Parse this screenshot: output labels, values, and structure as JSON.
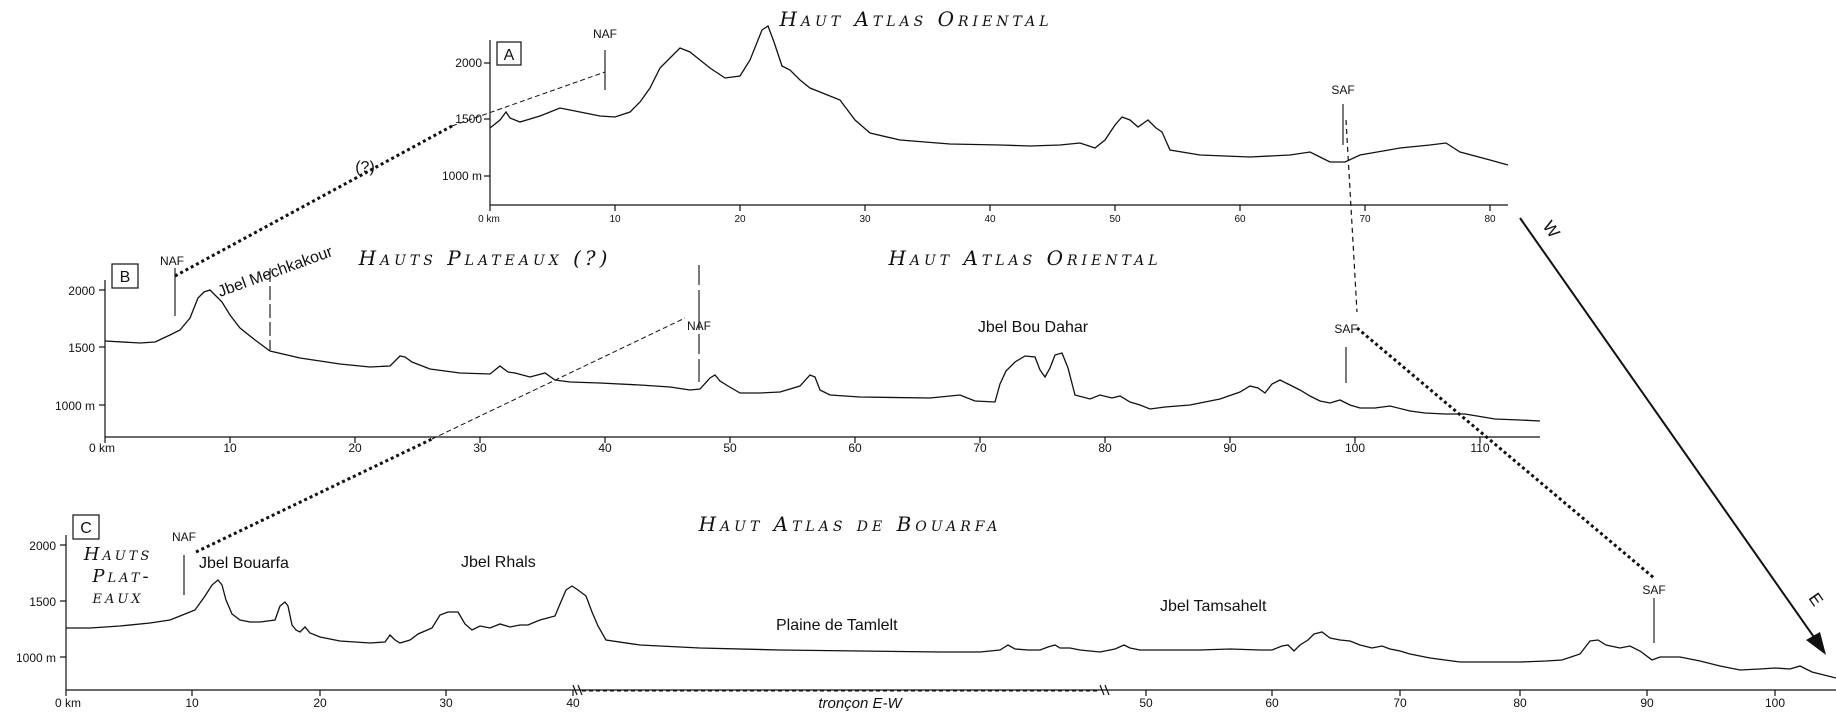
{
  "profileA": {
    "letter": "A",
    "title": "Haut Atlas Oriental",
    "x_ticks": [
      "0 km",
      "10",
      "20",
      "30",
      "40",
      "50",
      "60",
      "70",
      "80"
    ],
    "y_ticks": [
      "2000",
      "1500",
      "1000 m"
    ],
    "faults": {
      "naf": "NAF",
      "saf": "SAF"
    }
  },
  "profileB": {
    "letter": "B",
    "title_left": "Hauts Plateaux (?)",
    "title_right": "Haut Atlas Oriental",
    "x_ticks": [
      "0 km",
      "10",
      "20",
      "30",
      "40",
      "50",
      "60",
      "70",
      "80",
      "90",
      "100",
      "110"
    ],
    "y_ticks": [
      "2000",
      "1500",
      "1000 m"
    ],
    "faults": {
      "naf_left": "NAF",
      "naf_mid": "NAF",
      "saf": "SAF"
    },
    "labels": {
      "mechkakour": "Jbel Mechkakour",
      "bou_dahar": "Jbel Bou Dahar"
    }
  },
  "profileC": {
    "letter": "C",
    "title": "Haut Atlas de Bouarfa",
    "hauts_plateaux": [
      "Hauts",
      "Plat-",
      "eaux"
    ],
    "x_ticks": [
      "0 km",
      "10",
      "20",
      "30",
      "40",
      "50",
      "60",
      "70",
      "80",
      "90",
      "100"
    ],
    "y_ticks": [
      "2000",
      "1500",
      "1000 m"
    ],
    "faults": {
      "naf": "NAF",
      "saf": "SAF"
    },
    "labels": {
      "bouarfa": "Jbel Bouarfa",
      "rhals": "Jbel Rhals",
      "tamlelt": "Plaine de Tamlelt",
      "tamsahelt": "Jbel Tamsahelt"
    },
    "troncon": "tronçon E-W"
  },
  "correlation": {
    "question": "(?)"
  },
  "arrow": {
    "w": "W",
    "e": "E"
  }
}
